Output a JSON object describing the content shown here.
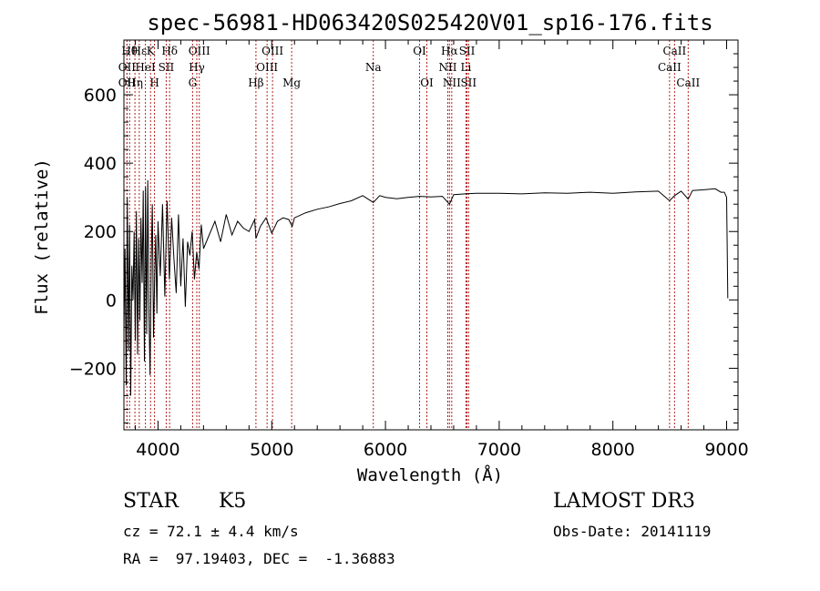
{
  "chart_data": {
    "type": "line",
    "title": "spec-56981-HD063420S025420V01_sp16-176.fits",
    "xlabel": "Wavelength (Å)",
    "ylabel": "Flux (relative)",
    "xlim": [
      3700,
      9100
    ],
    "ylim": [
      -380,
      760
    ],
    "x_ticks": [
      4000,
      5000,
      6000,
      7000,
      8000,
      9000
    ],
    "y_ticks": [
      -200,
      0,
      200,
      400,
      600
    ],
    "series": [
      {
        "name": "spectrum",
        "x": [
          3700,
          3710,
          3720,
          3730,
          3740,
          3750,
          3760,
          3770,
          3780,
          3790,
          3800,
          3810,
          3820,
          3830,
          3840,
          3850,
          3860,
          3870,
          3880,
          3890,
          3900,
          3910,
          3920,
          3930,
          3940,
          3950,
          3960,
          3970,
          3980,
          3990,
          4000,
          4020,
          4040,
          4060,
          4080,
          4100,
          4120,
          4140,
          4160,
          4180,
          4200,
          4220,
          4240,
          4260,
          4280,
          4300,
          4320,
          4340,
          4360,
          4380,
          4400,
          4450,
          4500,
          4550,
          4600,
          4650,
          4700,
          4750,
          4800,
          4850,
          4861,
          4900,
          4950,
          5000,
          5050,
          5100,
          5150,
          5180,
          5200,
          5300,
          5400,
          5500,
          5600,
          5700,
          5800,
          5893,
          5950,
          6000,
          6100,
          6200,
          6300,
          6400,
          6500,
          6563,
          6600,
          6700,
          6800,
          7000,
          7200,
          7400,
          7600,
          7800,
          8000,
          8200,
          8400,
          8498,
          8542,
          8600,
          8662,
          8700,
          8800,
          8900,
          8950,
          8980,
          9000,
          9010
        ],
        "y": [
          -100,
          150,
          -250,
          300,
          -150,
          220,
          -280,
          100,
          0,
          200,
          -120,
          260,
          -160,
          180,
          -60,
          240,
          50,
          320,
          -180,
          330,
          -100,
          350,
          -40,
          -220,
          120,
          280,
          -110,
          60,
          190,
          -40,
          230,
          70,
          280,
          10,
          290,
          60,
          240,
          120,
          20,
          250,
          40,
          180,
          -20,
          170,
          130,
          200,
          60,
          140,
          90,
          220,
          150,
          190,
          230,
          170,
          250,
          190,
          230,
          210,
          200,
          235,
          180,
          215,
          240,
          195,
          230,
          240,
          235,
          215,
          240,
          255,
          265,
          272,
          282,
          290,
          305,
          285,
          305,
          300,
          296,
          300,
          303,
          301,
          303,
          280,
          308,
          310,
          312,
          312,
          310,
          313,
          312,
          315,
          312,
          316,
          318,
          290,
          305,
          318,
          295,
          320,
          322,
          325,
          315,
          315,
          300,
          5
        ]
      }
    ],
    "line_markers": [
      {
        "wavelength": 3727,
        "label": "OII",
        "row": 2
      },
      {
        "wavelength": 3727,
        "label": "OII",
        "row": 3
      },
      {
        "wavelength": 3750,
        "label": "Hθ",
        "row": 1
      },
      {
        "wavelength": 3797,
        "label": "Hη",
        "row": 3
      },
      {
        "wavelength": 3835,
        "label": "Hε",
        "row": 1
      },
      {
        "wavelength": 3889,
        "label": "HeI",
        "row": 2
      },
      {
        "wavelength": 3934,
        "label": "K",
        "row": 1
      },
      {
        "wavelength": 3969,
        "label": "H",
        "row": 3
      },
      {
        "wavelength": 4072,
        "label": "SII",
        "row": 2
      },
      {
        "wavelength": 4102,
        "label": "Hδ",
        "row": 1
      },
      {
        "wavelength": 4304,
        "label": "G",
        "row": 3
      },
      {
        "wavelength": 4341,
        "label": "Hγ",
        "row": 2
      },
      {
        "wavelength": 4363,
        "label": "OIII",
        "row": 1
      },
      {
        "wavelength": 4861,
        "label": "Hβ",
        "row": 3
      },
      {
        "wavelength": 4959,
        "label": "OIII",
        "row": 2
      },
      {
        "wavelength": 5007,
        "label": "OIII",
        "row": 1
      },
      {
        "wavelength": 5175,
        "label": "Mg",
        "row": 3
      },
      {
        "wavelength": 5893,
        "label": "Na",
        "row": 2
      },
      {
        "wavelength": 6300,
        "label": "OI",
        "row": 1
      },
      {
        "wavelength": 6364,
        "label": "OI",
        "row": 3
      },
      {
        "wavelength": 6548,
        "label": "NII",
        "row": 2
      },
      {
        "wavelength": 6563,
        "label": "Hα",
        "row": 1
      },
      {
        "wavelength": 6583,
        "label": "NII",
        "row": 3
      },
      {
        "wavelength": 6708,
        "label": "Li",
        "row": 2
      },
      {
        "wavelength": 6717,
        "label": "SII",
        "row": 1
      },
      {
        "wavelength": 6731,
        "label": "SII",
        "row": 3
      },
      {
        "wavelength": 8498,
        "label": "CaII",
        "row": 2
      },
      {
        "wavelength": 8542,
        "label": "CaII",
        "row": 1
      },
      {
        "wavelength": 8662,
        "label": "CaII",
        "row": 3
      }
    ],
    "marker_color": "#b22222"
  },
  "info": {
    "object_class": "STAR",
    "subclass": "K5",
    "survey": "LAMOST DR3",
    "redshift": "cz = 72.1 ± 4.4 km/s",
    "obs_date": "Obs-Date: 20141119",
    "coords": "RA =  97.19403, DEC =  -1.36883"
  }
}
